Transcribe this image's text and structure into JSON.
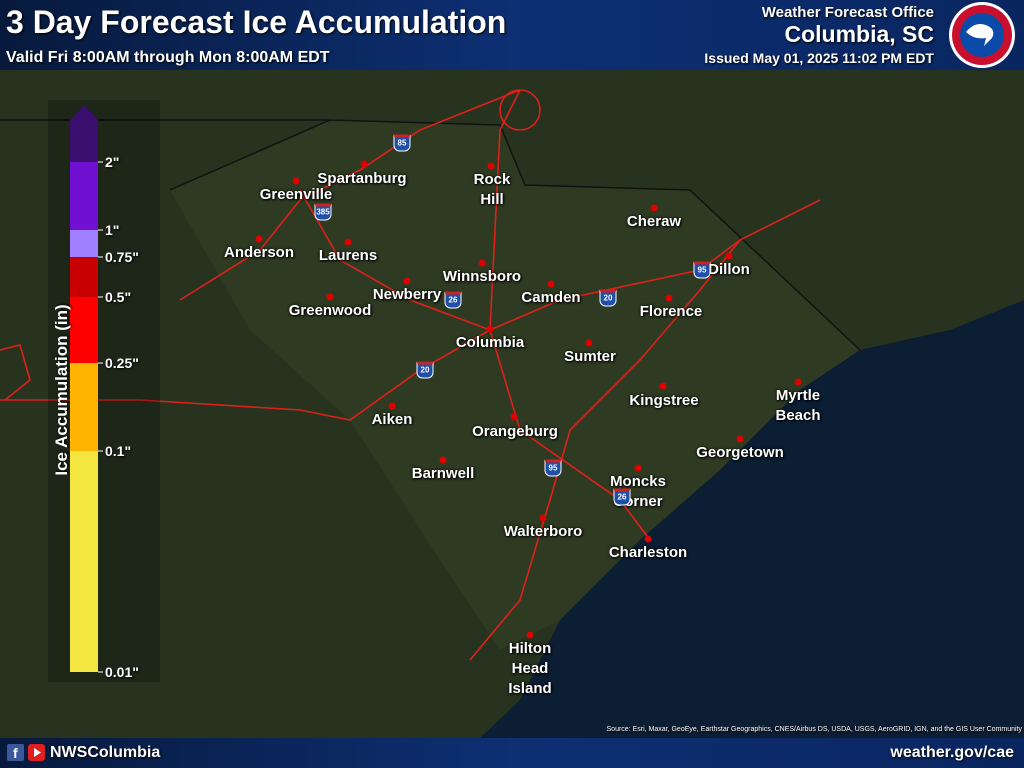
{
  "header": {
    "title": "3 Day Forecast Ice Accumulation",
    "subtitle": "Valid Fri 8:00AM through Mon 8:00AM EDT",
    "office": "Weather Forecast Office",
    "location": "Columbia, SC",
    "issued": "Issued May 01, 2025 11:02 PM EDT"
  },
  "legend": {
    "title": "Ice Accumulation (in)",
    "labels": [
      "2\"",
      "1\"",
      "0.75\"",
      "0.5\"",
      "0.25\"",
      "0.1\"",
      "0.01\""
    ],
    "colors": [
      "#3a0e6e",
      "#7010d0",
      "#a080ff",
      "#c80000",
      "#ff0000",
      "#ffb400",
      "#f4e641"
    ]
  },
  "cities": [
    "Spartanburg",
    "Greenville",
    "Rock Hill",
    "Cheraw",
    "Anderson",
    "Laurens",
    "Winnsboro",
    "Dillon",
    "Newberry",
    "Camden",
    "Greenwood",
    "Florence",
    "Columbia",
    "Sumter",
    "Kingstree",
    "Myrtle Beach",
    "Aiken",
    "Orangeburg",
    "Georgetown",
    "Barnwell",
    "Moncks Corner",
    "Walterboro",
    "Charleston",
    "Hilton Head Island"
  ],
  "highways": [
    "85",
    "385",
    "26",
    "20",
    "95",
    "20",
    "95",
    "26"
  ],
  "source": "Source: Esri, Maxar, GeoEye, Earthstar Geographics, CNES/Airbus DS, USDA, USGS, AeroGRID, IGN, and the GIS User Community",
  "footer": {
    "social": "NWSColumbia",
    "url": "weather.gov/cae"
  }
}
